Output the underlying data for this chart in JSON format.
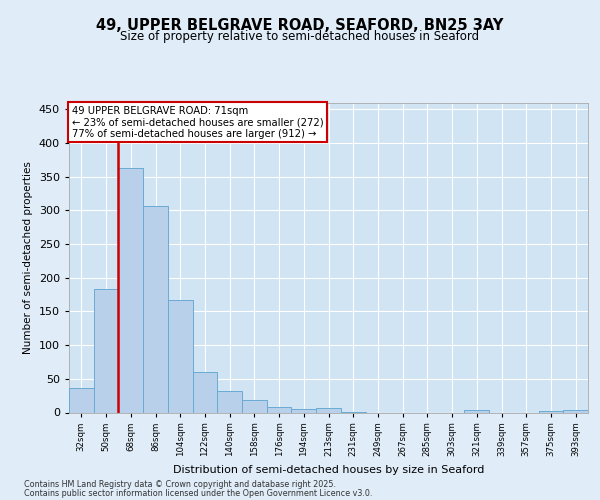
{
  "title1": "49, UPPER BELGRAVE ROAD, SEAFORD, BN25 3AY",
  "title2": "Size of property relative to semi-detached houses in Seaford",
  "xlabel": "Distribution of semi-detached houses by size in Seaford",
  "ylabel": "Number of semi-detached properties",
  "categories": [
    "32sqm",
    "50sqm",
    "68sqm",
    "86sqm",
    "104sqm",
    "122sqm",
    "140sqm",
    "158sqm",
    "176sqm",
    "194sqm",
    "213sqm",
    "231sqm",
    "249sqm",
    "267sqm",
    "285sqm",
    "303sqm",
    "321sqm",
    "339sqm",
    "357sqm",
    "375sqm",
    "393sqm"
  ],
  "values": [
    37,
    183,
    363,
    307,
    167,
    60,
    32,
    18,
    8,
    5,
    7,
    1,
    0,
    0,
    0,
    0,
    3,
    0,
    0,
    2,
    3
  ],
  "bar_color": "#b8d0ea",
  "bar_edge_color": "#6aaad4",
  "vline_color": "#cc0000",
  "annotation_title": "49 UPPER BELGRAVE ROAD: 71sqm",
  "annotation_line1": "← 23% of semi-detached houses are smaller (272)",
  "annotation_line2": "77% of semi-detached houses are larger (912) →",
  "annotation_box_color": "#ffffff",
  "annotation_box_edge": "#cc0000",
  "ylim": [
    0,
    460
  ],
  "yticks": [
    0,
    50,
    100,
    150,
    200,
    250,
    300,
    350,
    400,
    450
  ],
  "bg_color": "#e0ecf8",
  "plot_bg_color": "#d0e4f4",
  "grid_color": "#c0d0e4",
  "footer1": "Contains HM Land Registry data © Crown copyright and database right 2025.",
  "footer2": "Contains public sector information licensed under the Open Government Licence v3.0."
}
